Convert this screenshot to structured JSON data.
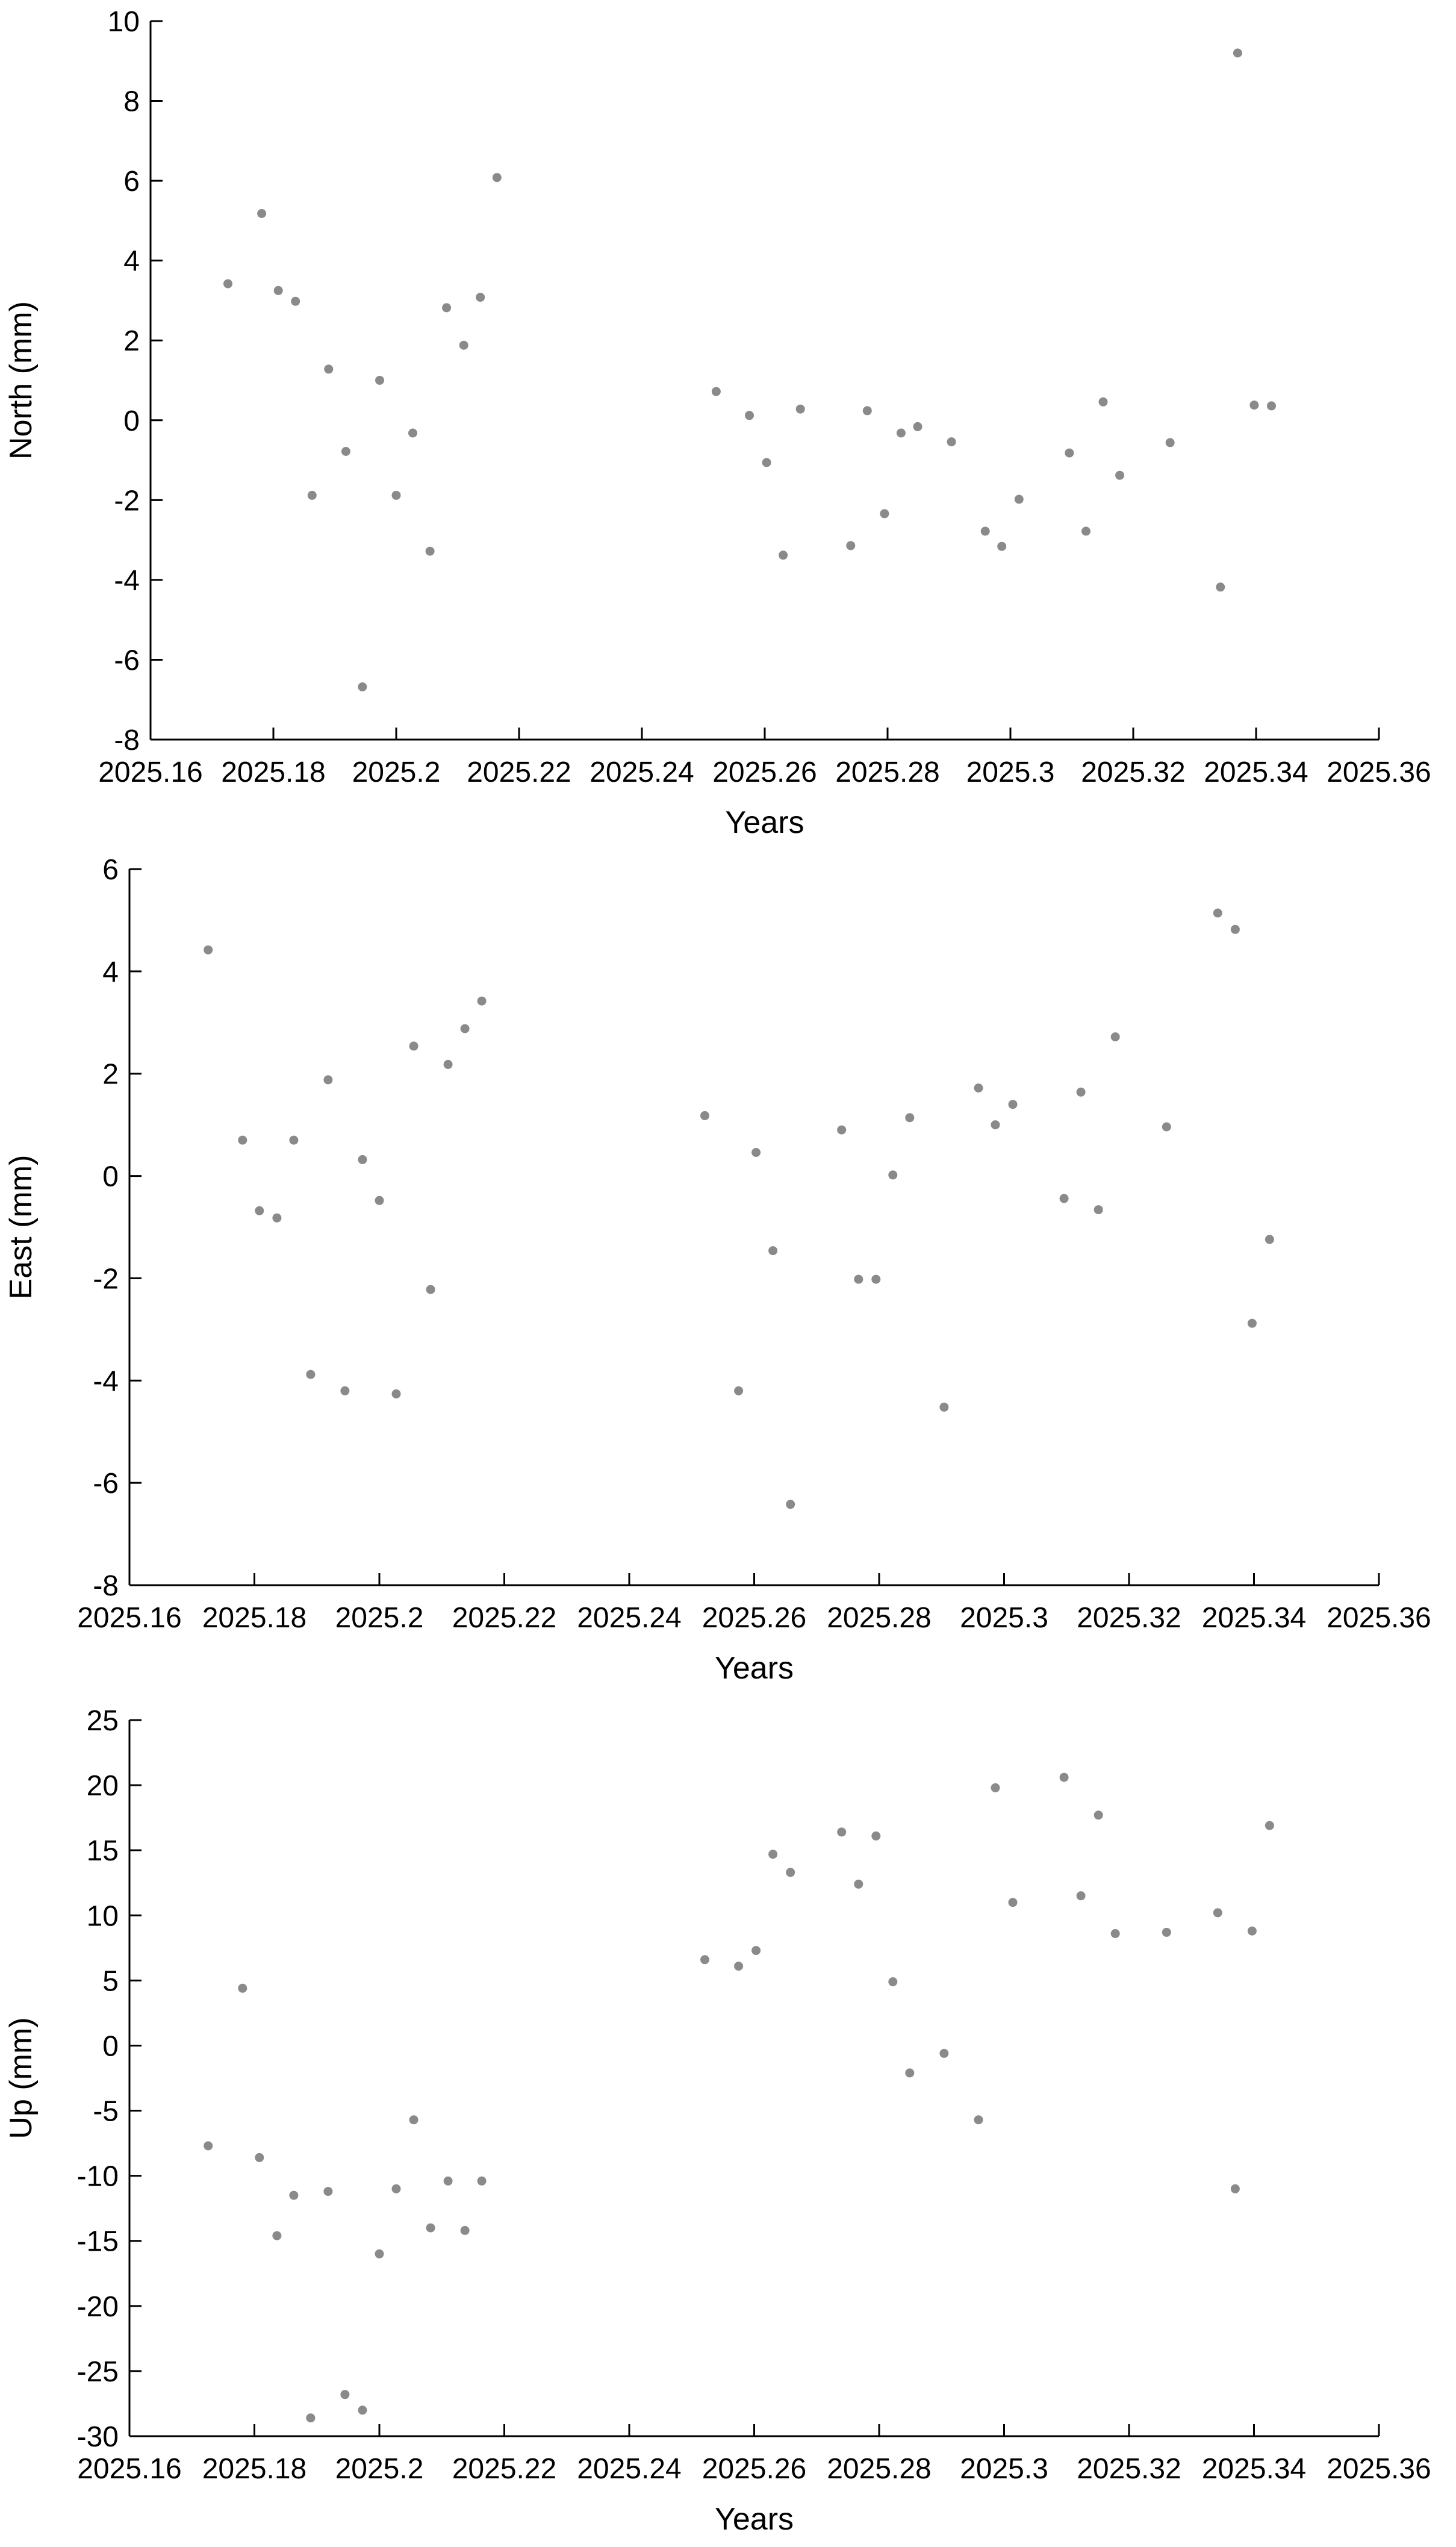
{
  "colors": {
    "point": "#8a8a8a",
    "axis": "#000000"
  },
  "chart_data": [
    {
      "type": "scatter",
      "xlabel": "Years",
      "ylabel": "North (mm)",
      "xlim": [
        2025.16,
        2025.36
      ],
      "ylim": [
        -8,
        10
      ],
      "xticks": [
        "2025.16",
        "2025.18",
        "2025.2",
        "2025.22",
        "2025.24",
        "2025.26",
        "2025.28",
        "2025.3",
        "2025.32",
        "2025.34",
        "2025.36"
      ],
      "yticks": [
        "-8",
        "-6",
        "-4",
        "-2",
        "0",
        "2",
        "4",
        "6",
        "8",
        "10"
      ],
      "x": [
        2025.1726,
        2025.1781,
        2025.1808,
        2025.1836,
        2025.1863,
        2025.189,
        2025.1918,
        2025.1945,
        2025.1973,
        2025.2,
        2025.2027,
        2025.2055,
        2025.2082,
        2025.211,
        2025.2137,
        2025.2164,
        2025.2521,
        2025.2575,
        2025.2603,
        2025.263,
        2025.2658,
        2025.274,
        2025.2767,
        2025.2795,
        2025.2822,
        2025.2849,
        2025.2904,
        2025.2959,
        2025.2986,
        2025.3014,
        2025.3096,
        2025.3123,
        2025.3151,
        2025.3178,
        2025.326,
        2025.3342,
        2025.337,
        2025.3397,
        2025.3425
      ],
      "y": [
        3.42,
        5.18,
        3.25,
        2.98,
        -1.88,
        1.28,
        -0.78,
        -6.68,
        1.0,
        -1.88,
        -0.32,
        -3.28,
        2.82,
        1.88,
        3.08,
        6.08,
        0.72,
        0.12,
        -1.06,
        -3.38,
        0.28,
        -3.14,
        0.24,
        -2.34,
        -0.32,
        -0.16,
        -0.54,
        -2.78,
        -3.16,
        -1.98,
        -0.82,
        -2.78,
        0.46,
        -1.38,
        -0.56,
        -4.18,
        9.2,
        0.38,
        0.36
      ]
    },
    {
      "type": "scatter",
      "xlabel": "Years",
      "ylabel": "East (mm)",
      "xlim": [
        2025.16,
        2025.36
      ],
      "ylim": [
        -8,
        6
      ],
      "xticks": [
        "2025.16",
        "2025.18",
        "2025.2",
        "2025.22",
        "2025.24",
        "2025.26",
        "2025.28",
        "2025.3",
        "2025.32",
        "2025.34",
        "2025.36"
      ],
      "yticks": [
        "-8",
        "-6",
        "-4",
        "-2",
        "0",
        "2",
        "4",
        "6"
      ],
      "x": [
        2025.1726,
        2025.1781,
        2025.1808,
        2025.1836,
        2025.1863,
        2025.189,
        2025.1918,
        2025.1945,
        2025.1973,
        2025.2,
        2025.2027,
        2025.2055,
        2025.2082,
        2025.211,
        2025.2137,
        2025.2164,
        2025.2521,
        2025.2575,
        2025.2603,
        2025.263,
        2025.2658,
        2025.274,
        2025.2767,
        2025.2795,
        2025.2822,
        2025.2849,
        2025.2904,
        2025.2959,
        2025.2986,
        2025.3014,
        2025.3096,
        2025.3123,
        2025.3151,
        2025.3178,
        2025.326,
        2025.3342,
        2025.337,
        2025.3397,
        2025.3425
      ],
      "y": [
        4.42,
        0.7,
        -0.68,
        -0.82,
        0.7,
        -3.88,
        1.88,
        -4.2,
        0.32,
        -0.48,
        -4.26,
        2.54,
        -2.22,
        2.18,
        2.88,
        3.42,
        1.18,
        -4.2,
        0.46,
        -1.46,
        -6.42,
        0.9,
        -2.02,
        -2.02,
        0.02,
        1.14,
        -4.52,
        1.72,
        1.0,
        1.4,
        -0.44,
        1.64,
        -0.66,
        2.72,
        0.96,
        5.14,
        4.82,
        -2.88,
        -1.24
      ]
    },
    {
      "type": "scatter",
      "xlabel": "Years",
      "ylabel": "Up (mm)",
      "xlim": [
        2025.16,
        2025.36
      ],
      "ylim": [
        -30,
        25
      ],
      "xticks": [
        "2025.16",
        "2025.18",
        "2025.2",
        "2025.22",
        "2025.24",
        "2025.26",
        "2025.28",
        "2025.3",
        "2025.32",
        "2025.34",
        "2025.36"
      ],
      "yticks": [
        "-30",
        "-25",
        "-20",
        "-15",
        "-10",
        "-5",
        "0",
        "5",
        "10",
        "15",
        "20",
        "25"
      ],
      "x": [
        2025.1726,
        2025.1781,
        2025.1808,
        2025.1836,
        2025.1863,
        2025.189,
        2025.1918,
        2025.1945,
        2025.1973,
        2025.2,
        2025.2027,
        2025.2055,
        2025.2082,
        2025.211,
        2025.2137,
        2025.2164,
        2025.2521,
        2025.2575,
        2025.2603,
        2025.263,
        2025.2658,
        2025.274,
        2025.2767,
        2025.2795,
        2025.2822,
        2025.2849,
        2025.2904,
        2025.2959,
        2025.2986,
        2025.3014,
        2025.3096,
        2025.3123,
        2025.3151,
        2025.3178,
        2025.326,
        2025.3342,
        2025.337,
        2025.3397,
        2025.3425
      ],
      "y": [
        -7.7,
        4.4,
        -8.6,
        -14.6,
        -11.5,
        -28.6,
        -11.2,
        -26.8,
        -28.0,
        -16.0,
        -11.0,
        -5.7,
        -14.0,
        -10.4,
        -14.2,
        -10.4,
        6.6,
        6.1,
        7.3,
        14.7,
        13.3,
        16.4,
        12.4,
        16.1,
        4.9,
        -2.1,
        -0.6,
        -5.7,
        19.8,
        11.0,
        20.6,
        11.5,
        17.7,
        8.6,
        8.7,
        10.2,
        -11.0,
        8.8,
        16.9
      ]
    }
  ]
}
